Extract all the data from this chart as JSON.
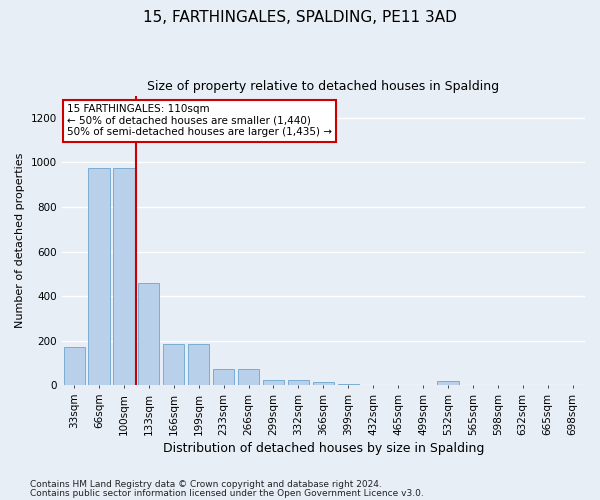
{
  "title": "15, FARTHINGALES, SPALDING, PE11 3AD",
  "subtitle": "Size of property relative to detached houses in Spalding",
  "xlabel": "Distribution of detached houses by size in Spalding",
  "ylabel": "Number of detached properties",
  "footnote1": "Contains HM Land Registry data © Crown copyright and database right 2024.",
  "footnote2": "Contains public sector information licensed under the Open Government Licence v3.0.",
  "annotation_title": "15 FARTHINGALES: 110sqm",
  "annotation_line1": "← 50% of detached houses are smaller (1,440)",
  "annotation_line2": "50% of semi-detached houses are larger (1,435) →",
  "bar_color": "#b8d0ea",
  "bar_edge_color": "#7aadd4",
  "vline_color": "#cc0000",
  "vline_x_idx": 2,
  "categories": [
    "33sqm",
    "66sqm",
    "100sqm",
    "133sqm",
    "166sqm",
    "199sqm",
    "233sqm",
    "266sqm",
    "299sqm",
    "332sqm",
    "366sqm",
    "399sqm",
    "432sqm",
    "465sqm",
    "499sqm",
    "532sqm",
    "565sqm",
    "598sqm",
    "632sqm",
    "665sqm",
    "698sqm"
  ],
  "values": [
    170,
    975,
    975,
    460,
    185,
    185,
    75,
    75,
    25,
    25,
    15,
    5,
    0,
    0,
    0,
    18,
    0,
    0,
    0,
    0,
    0
  ],
  "ylim": [
    0,
    1300
  ],
  "yticks": [
    0,
    200,
    400,
    600,
    800,
    1000,
    1200
  ],
  "background_color": "#e8eef6",
  "grid_color": "#ffffff",
  "title_fontsize": 11,
  "subtitle_fontsize": 9,
  "footnote_fontsize": 6.5,
  "ylabel_fontsize": 8,
  "xlabel_fontsize": 9,
  "tick_fontsize": 7.5
}
